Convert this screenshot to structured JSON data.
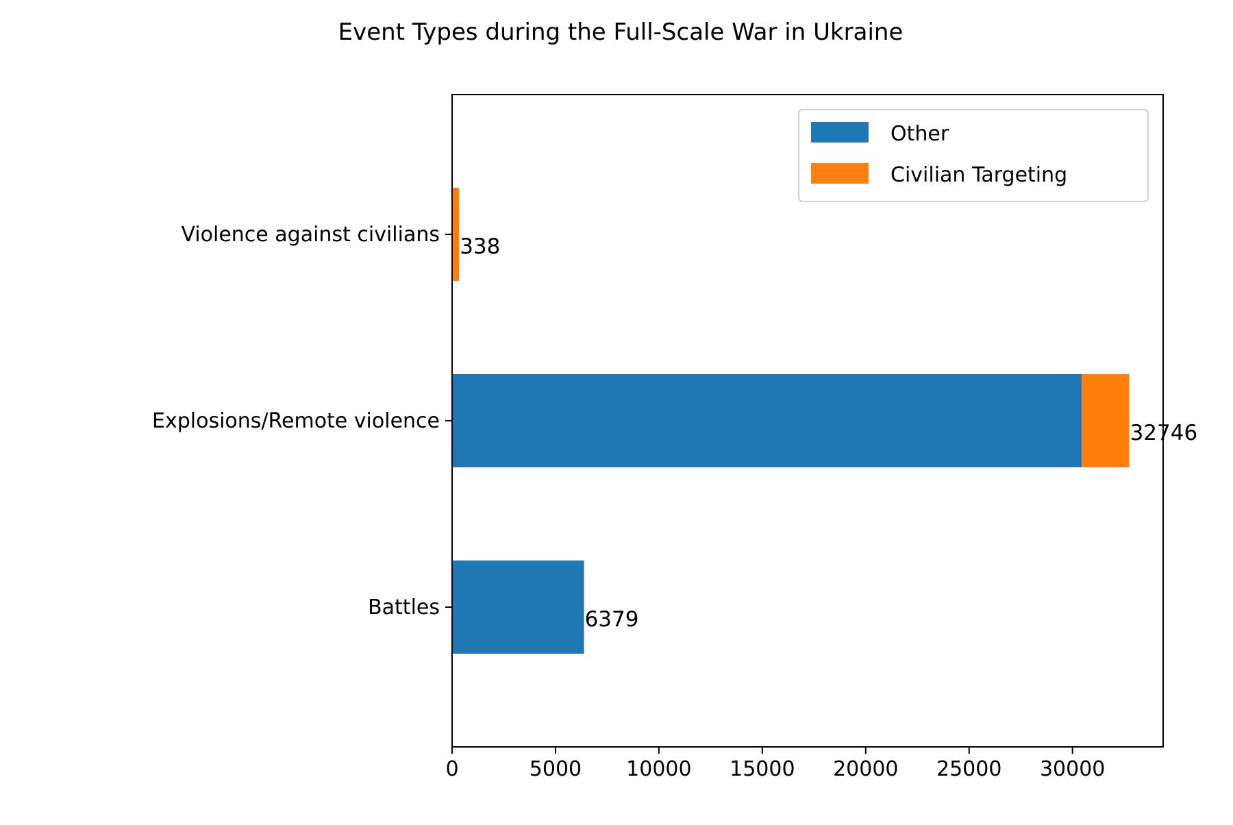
{
  "chart_data": {
    "type": "bar",
    "orientation": "horizontal",
    "stacked": true,
    "title": "Event Types during the Full-Scale War in Ukraine",
    "xlabel": "",
    "ylabel": "",
    "categories": [
      "Battles",
      "Explosions/Remote violence",
      "Violence against civilians"
    ],
    "series": [
      {
        "name": "Other",
        "color": "#1f77b4",
        "values": [
          6379,
          30450,
          0
        ]
      },
      {
        "name": "Civilian Targeting",
        "color": "#ff7f0e",
        "values": [
          0,
          2296,
          338
        ]
      }
    ],
    "data_labels": [
      "6379",
      "32746",
      "338"
    ],
    "xlim": [
      0,
      34383
    ],
    "xticks": [
      0,
      5000,
      10000,
      15000,
      20000,
      25000,
      30000
    ],
    "xtick_labels": [
      "0",
      "5000",
      "10000",
      "15000",
      "20000",
      "25000",
      "30000"
    ],
    "grid": false,
    "legend_position": "top-right"
  }
}
